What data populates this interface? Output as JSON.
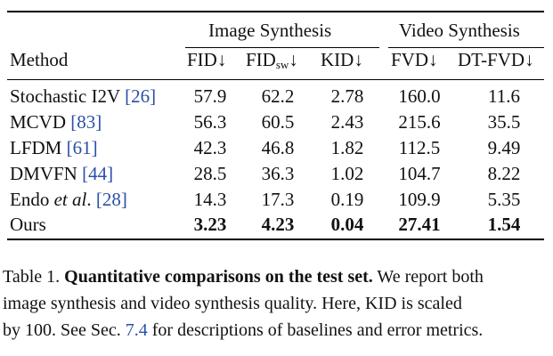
{
  "table": {
    "group_headers": [
      "Image Synthesis",
      "Video Synthesis"
    ],
    "columns": {
      "method": "Method",
      "fid": "FID↓",
      "fidsw_base": "FID",
      "fidsw_sub": "sw",
      "fidsw_arrow": "↓",
      "kid": "KID↓",
      "fvd": "FVD↓",
      "dtfvd": "DT-FVD↓"
    },
    "rows": [
      {
        "name": "Stochastic I2V ",
        "ref": "[26]",
        "italic": "",
        "post": "",
        "fid": "57.9",
        "fidsw": "62.2",
        "kid": "2.78",
        "fvd": "160.0",
        "dtfvd": "11.6"
      },
      {
        "name": "MCVD ",
        "ref": "[83]",
        "italic": "",
        "post": "",
        "fid": "56.3",
        "fidsw": "60.5",
        "kid": "2.43",
        "fvd": "215.6",
        "dtfvd": "35.5"
      },
      {
        "name": "LFDM ",
        "ref": "[61]",
        "italic": "",
        "post": "",
        "fid": "42.3",
        "fidsw": "46.8",
        "kid": "1.82",
        "fvd": "112.5",
        "dtfvd": "9.49"
      },
      {
        "name": "DMVFN ",
        "ref": "[44]",
        "italic": "",
        "post": "",
        "fid": "28.5",
        "fidsw": "36.3",
        "kid": "1.02",
        "fvd": "104.7",
        "dtfvd": "8.22"
      },
      {
        "name": "Endo ",
        "ref": "[28]",
        "italic": "et al",
        "post": ". ",
        "fid": "14.3",
        "fidsw": "17.3",
        "kid": "0.19",
        "fvd": "109.9",
        "dtfvd": "5.35"
      },
      {
        "name": "Ours",
        "ref": "",
        "italic": "",
        "post": "",
        "fid": "3.23",
        "fidsw": "4.23",
        "kid": "0.04",
        "fvd": "27.41",
        "dtfvd": "1.54"
      }
    ]
  },
  "caption": {
    "label": "Table 1. ",
    "bold": "Quantitative comparisons on the test set.",
    "line1_rest": " We report both",
    "line2": "image synthesis and video synthesis quality. Here, KID is scaled",
    "line3_pre": "by 100. See Sec. ",
    "line3_link": "7.4",
    "line3_post": " for descriptions of baselines and error metrics."
  },
  "colors": {
    "link": "#2a4fa8",
    "text": "#111111"
  }
}
